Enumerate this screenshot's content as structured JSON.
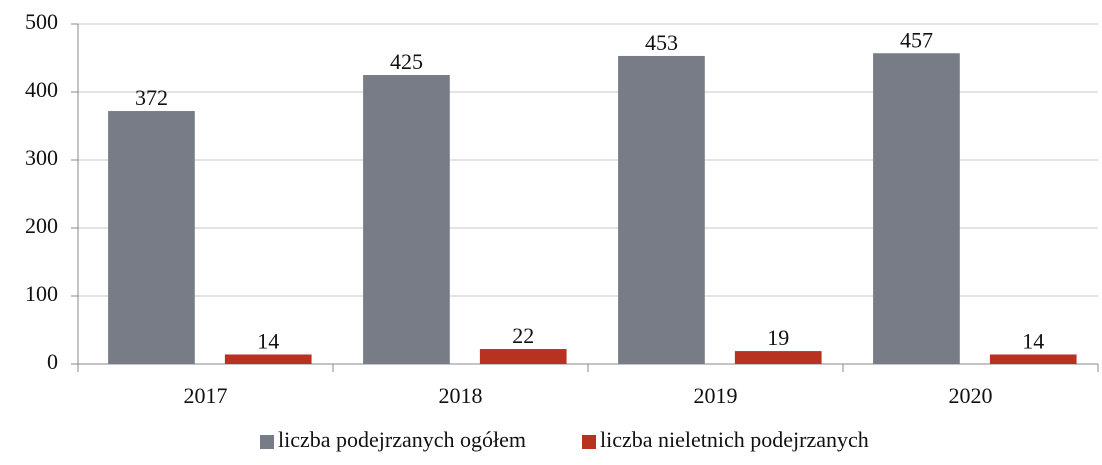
{
  "chart_data": {
    "type": "bar",
    "categories": [
      "2017",
      "2018",
      "2019",
      "2020"
    ],
    "series": [
      {
        "name": "liczba podejrzanych ogółem",
        "color": "#787c86",
        "values": [
          372,
          425,
          453,
          457
        ]
      },
      {
        "name": "liczba nieletnich podejrzanych",
        "color": "#b8321f",
        "values": [
          14,
          22,
          19,
          14
        ]
      }
    ],
    "ylim": [
      0,
      500
    ],
    "yticks": [
      0,
      100,
      200,
      300,
      400,
      500
    ],
    "grid": true,
    "legend": "bottom"
  }
}
